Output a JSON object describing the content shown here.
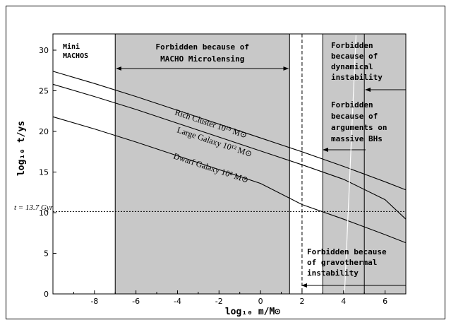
{
  "chart_data": {
    "type": "line",
    "xlabel": "log₁₀ m/M⊙",
    "ylabel": "log₁₀ t/ys",
    "xlim": [
      -10,
      7
    ],
    "ylim": [
      0,
      32
    ],
    "xticks": [
      "-8",
      "-6",
      "-4",
      "-2",
      "0",
      "2",
      "4",
      "6"
    ],
    "yticks": [
      "0",
      "5",
      "10",
      "15",
      "20",
      "25",
      "30"
    ],
    "grid": false,
    "series": [
      {
        "name": "Rich Cluster  10¹⁵ M⊙",
        "x": [
          -10,
          -8,
          -6,
          -4,
          -2,
          0,
          2,
          4,
          6,
          7
        ],
        "y": [
          27.4,
          25.9,
          24.3,
          22.6,
          20.9,
          19.2,
          17.5,
          15.7,
          13.8,
          12.8
        ]
      },
      {
        "name": "Large Galaxy  10¹² M⊙",
        "x": [
          -10,
          -8,
          -6,
          -4,
          -2,
          0,
          2,
          4,
          6,
          7
        ],
        "y": [
          25.8,
          24.3,
          22.7,
          21.0,
          19.3,
          17.6,
          15.9,
          14.1,
          11.6,
          9.2
        ]
      },
      {
        "name": "Dwarf Galaxy  10⁸ M⊙",
        "x": [
          -10,
          -8,
          -6,
          -4,
          -2,
          0,
          2,
          4,
          6,
          7
        ],
        "y": [
          21.8,
          20.3,
          18.7,
          17.0,
          15.3,
          13.6,
          11.0,
          9.2,
          7.3,
          6.3
        ]
      }
    ],
    "regions": [
      {
        "name": "forbidden-macho",
        "x": [
          -7,
          1.4
        ],
        "label": "Forbidden because of\nMACHO Microlensing"
      },
      {
        "name": "forbidden-bh",
        "x": [
          3,
          7
        ],
        "label": ""
      }
    ],
    "reference_lines": {
      "age_of_universe": {
        "y": 10.14,
        "label": "t = 13.7 Gyr"
      },
      "dashed_vertical": {
        "x": 2
      },
      "solid_vertical": {
        "x": 5
      }
    },
    "annotations": {
      "mini_machos": "Mini\nMACHOS",
      "dynamical": "Forbidden\nbecause of\ndynamical\ninstability",
      "massive_bh": "Forbidden\nbecause of\narguments on\nmassive BHs",
      "gravothermal": "Forbidden because\nof gravothermal\ninstability"
    },
    "colors": {
      "region_fill": "#c8c8c8",
      "line": "#000000"
    }
  }
}
